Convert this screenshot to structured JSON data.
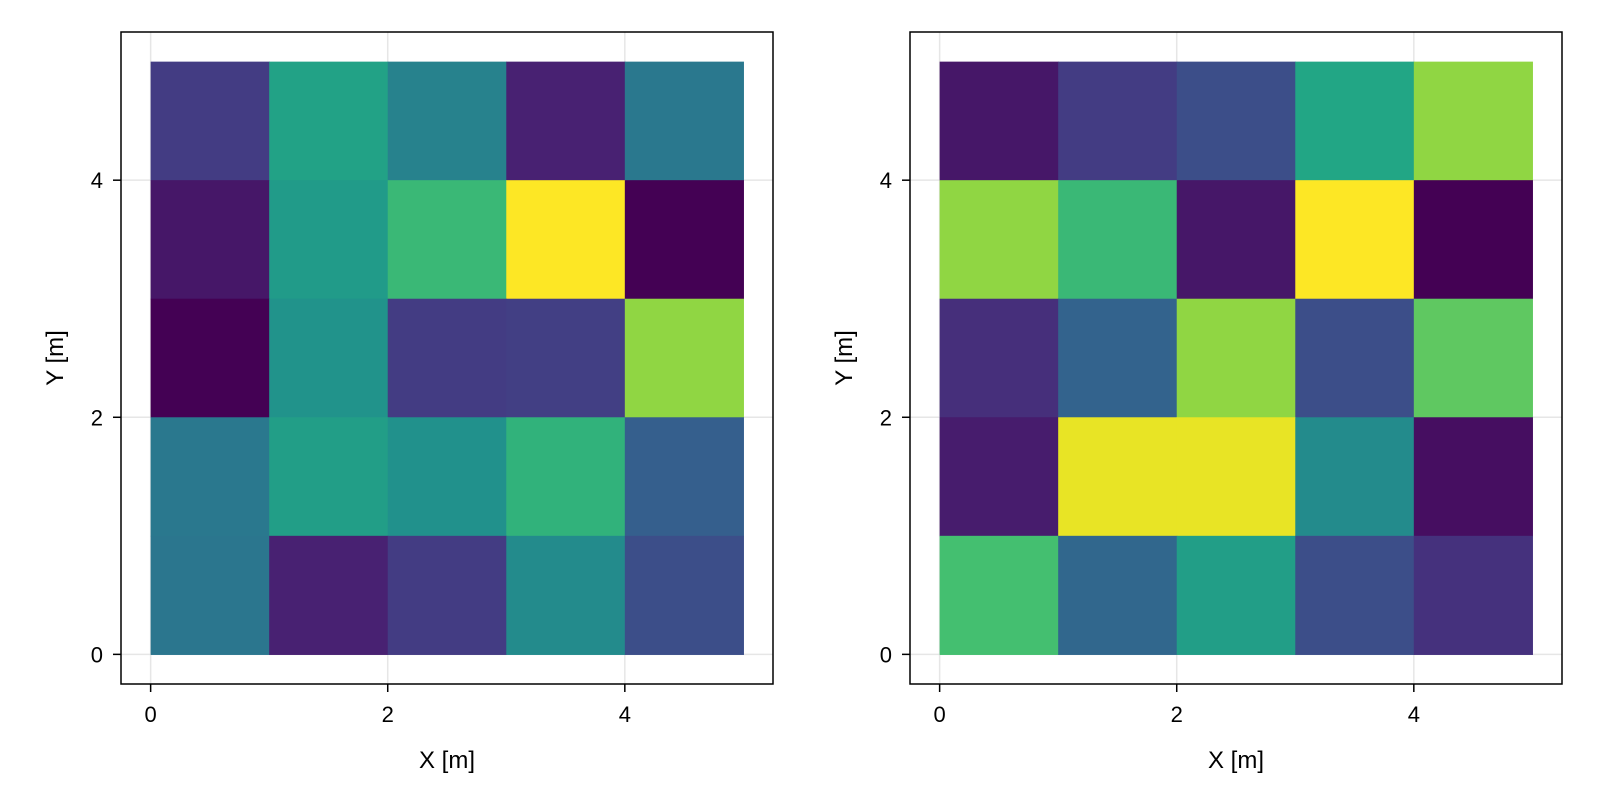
{
  "chart_data": [
    {
      "type": "heatmap",
      "colormap": "viridis",
      "xlabel": "X [m]",
      "ylabel": "Y [m]",
      "xlim": [
        -0.25,
        5.25
      ],
      "ylim": [
        -0.25,
        5.25
      ],
      "x_ticks": [
        0,
        2,
        4
      ],
      "y_ticks": [
        0,
        2,
        4
      ],
      "x_tick_labels": [
        "0",
        "2",
        "4"
      ],
      "y_tick_labels": [
        "0",
        "2",
        "4"
      ],
      "grid": true,
      "cell_size": 1,
      "value_range": [
        0,
        1
      ],
      "rows_from_top": [
        [
          0.22,
          0.72,
          0.55,
          0.12,
          0.5
        ],
        [
          0.08,
          0.68,
          0.8,
          1.0,
          0.0
        ],
        [
          0.0,
          0.64,
          0.22,
          0.23,
          0.9
        ],
        [
          0.5,
          0.7,
          0.63,
          0.78,
          0.38
        ],
        [
          0.49,
          0.12,
          0.22,
          0.6,
          0.3
        ]
      ]
    },
    {
      "type": "heatmap",
      "colormap": "viridis",
      "xlabel": "X [m]",
      "ylabel": "Y [m]",
      "xlim": [
        -0.25,
        5.25
      ],
      "ylim": [
        -0.25,
        5.25
      ],
      "x_ticks": [
        0,
        2,
        4
      ],
      "y_ticks": [
        0,
        2,
        4
      ],
      "x_tick_labels": [
        "0",
        "2",
        "4"
      ],
      "y_tick_labels": [
        "0",
        "2",
        "4"
      ],
      "grid": true,
      "cell_size": 1,
      "value_range": [
        0,
        1
      ],
      "rows_from_top": [
        [
          0.08,
          0.22,
          0.3,
          0.74,
          0.9
        ],
        [
          0.9,
          0.8,
          0.08,
          1.0,
          0.0
        ],
        [
          0.17,
          0.4,
          0.9,
          0.3,
          0.85
        ],
        [
          0.1,
          0.98,
          0.98,
          0.6,
          0.05
        ],
        [
          0.82,
          0.42,
          0.7,
          0.3,
          0.18
        ]
      ]
    }
  ]
}
